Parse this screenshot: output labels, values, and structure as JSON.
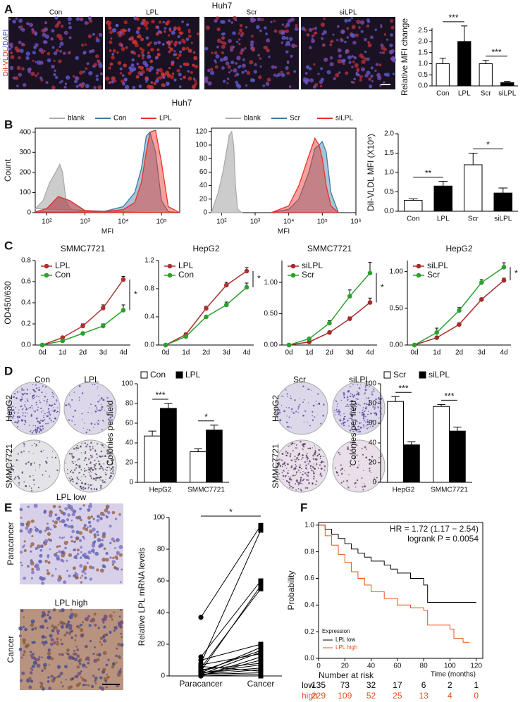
{
  "panel_labels": [
    "A",
    "B",
    "C",
    "D",
    "E",
    "F"
  ],
  "images": {
    "A": {
      "title": "Huh7",
      "side_label": [
        "DiI-VLDL",
        "/DAPI"
      ],
      "labels": [
        "Con",
        "LPL",
        "Scr",
        "siLPL"
      ]
    },
    "D": {
      "left": {
        "labels": [
          "Con",
          "LPL"
        ],
        "rows": [
          "HepG2",
          "SMMC7721"
        ]
      },
      "right": {
        "labels": [
          "Scr",
          "siLPL"
        ],
        "rows": [
          "HepG2",
          "SMMC7721"
        ]
      }
    },
    "E": {
      "labels": [
        "LPL low",
        "LPL high"
      ],
      "rows": [
        "Paracancer",
        "Cancer"
      ]
    }
  },
  "B_title": "Huh7",
  "chart_data": [
    {
      "type": "bar",
      "ylabel": "Relative MFI change",
      "categories": [
        "Con",
        "LPL",
        "Scr",
        "siLPL"
      ],
      "values": [
        1.0,
        2.0,
        1.0,
        0.15
      ],
      "errors": [
        0.25,
        0.7,
        0.15,
        0.05
      ],
      "colors": [
        "#ffffff",
        "#000000",
        "#ffffff",
        "#000000"
      ],
      "ylim": [
        0,
        2.6
      ],
      "yticks": [
        {
          "value": 0,
          "label": "0.0"
        },
        {
          "value": 0.5,
          "label": "0.5"
        },
        {
          "value": 1,
          "label": "1.0"
        },
        {
          "value": 1.5,
          "label": "1.5"
        },
        {
          "value": 2,
          "label": "2.0"
        },
        {
          "value": 2.5,
          "label": "2.5"
        }
      ],
      "annotations": [
        "***",
        "***"
      ]
    },
    {
      "type": "density",
      "ylabel": "Count",
      "xlabel": "MFI",
      "xscale": "log",
      "xlim": [
        50,
        300000
      ],
      "xticks": [
        {
          "value": 100,
          "label": "10²"
        },
        {
          "value": 1000,
          "label": "10³"
        },
        {
          "value": 10000,
          "label": "10⁴"
        },
        {
          "value": 100000,
          "label": "10⁵"
        }
      ],
      "ylim": [
        0,
        420
      ],
      "yticks": [
        0,
        100,
        200,
        300,
        400
      ],
      "series": [
        {
          "name": "blank",
          "color": "#aaaaaa",
          "x": [
            50,
            80,
            120,
            170,
            220,
            260,
            320,
            400,
            600,
            1000,
            3000,
            10000,
            50000
          ],
          "values": [
            20,
            60,
            150,
            200,
            240,
            200,
            60,
            20,
            10,
            5,
            3,
            2,
            0
          ]
        },
        {
          "name": "Con",
          "color": "#3b7ea1",
          "x": [
            50,
            100,
            200,
            400,
            1000,
            3000,
            10000,
            20000,
            30000,
            40000,
            50000,
            70000,
            100000,
            150000,
            300000
          ],
          "values": [
            3,
            20,
            80,
            60,
            10,
            5,
            30,
            100,
            220,
            380,
            400,
            300,
            60,
            5,
            0
          ]
        },
        {
          "name": "LPL",
          "color": "#e8312a",
          "x": [
            50,
            100,
            200,
            400,
            1000,
            3000,
            10000,
            20000,
            30000,
            40000,
            50000,
            70000,
            100000,
            150000,
            300000
          ],
          "values": [
            3,
            20,
            80,
            60,
            10,
            5,
            15,
            50,
            150,
            300,
            400,
            410,
            250,
            30,
            0
          ]
        }
      ]
    },
    {
      "type": "density",
      "xlabel": "MFI",
      "xscale": "log",
      "xlim": [
        50,
        1000000
      ],
      "xticks": [
        {
          "value": 100,
          "label": "10²"
        },
        {
          "value": 1000,
          "label": "10³"
        },
        {
          "value": 10000,
          "label": "10⁴"
        },
        {
          "value": 100000,
          "label": "10⁵"
        },
        {
          "value": 1000000,
          "label": "10⁶"
        }
      ],
      "ylim": [
        0,
        125
      ],
      "yticks": [
        0,
        20,
        40,
        60,
        80,
        100,
        120
      ],
      "series": [
        {
          "name": "blank",
          "color": "#aaaaaa",
          "x": [
            50,
            80,
            110,
            140,
            170,
            200,
            230,
            260,
            300,
            400
          ],
          "values": [
            0,
            30,
            60,
            90,
            115,
            120,
            100,
            40,
            5,
            0
          ]
        },
        {
          "name": "Scr",
          "color": "#3b7ea1",
          "x": [
            3000,
            10000,
            20000,
            40000,
            60000,
            80000,
            100000,
            130000,
            180000,
            300000
          ],
          "values": [
            0,
            5,
            20,
            60,
            95,
            100,
            105,
            90,
            30,
            0
          ]
        },
        {
          "name": "siLPL",
          "color": "#e8312a",
          "x": [
            3000,
            10000,
            20000,
            40000,
            60000,
            80000,
            100000,
            130000,
            180000,
            300000
          ],
          "values": [
            0,
            10,
            40,
            85,
            110,
            100,
            80,
            40,
            10,
            0
          ]
        }
      ]
    },
    {
      "type": "bar",
      "ylabel": "DiI-VLDL MFI (X10⁶)",
      "categories": [
        "Con",
        "LPL",
        "Scr",
        "siLPL"
      ],
      "values": [
        0.28,
        0.65,
        1.2,
        0.47
      ],
      "errors": [
        0.04,
        0.12,
        0.3,
        0.13
      ],
      "colors": [
        "#ffffff",
        "#000000",
        "#ffffff",
        "#000000"
      ],
      "ylim": [
        0,
        2
      ],
      "yticks": [
        {
          "value": 0,
          "label": "0.0"
        },
        {
          "value": 0.5,
          "label": "0.5"
        },
        {
          "value": 1,
          "label": "1.0"
        },
        {
          "value": 1.5,
          "label": "1.5"
        },
        {
          "value": 2,
          "label": "2.0"
        }
      ],
      "annotations": [
        "**",
        "*"
      ]
    },
    {
      "type": "line",
      "title": "SMMC7721",
      "ylabel": "OD450/630",
      "categories": [
        "0d",
        "1d",
        "2d",
        "3d",
        "4d"
      ],
      "ylim": [
        0,
        0.8
      ],
      "yticks": [
        {
          "value": 0,
          "label": "0.0"
        },
        {
          "value": 0.2,
          "label": "0.2"
        },
        {
          "value": 0.4,
          "label": "0.4"
        },
        {
          "value": 0.6,
          "label": "0.6"
        },
        {
          "value": 0.8,
          "label": "0.8"
        }
      ],
      "series": [
        {
          "name": "LPL",
          "color": "#b03030",
          "values": [
            0,
            0.07,
            0.18,
            0.35,
            0.62
          ],
          "errors": [
            0,
            0.01,
            0.02,
            0.03,
            0.03
          ]
        },
        {
          "name": "Con",
          "color": "#2ca02c",
          "values": [
            0,
            0.04,
            0.11,
            0.18,
            0.33
          ],
          "errors": [
            0,
            0.01,
            0.01,
            0.02,
            0.05
          ]
        }
      ],
      "annotations": [
        "*"
      ]
    },
    {
      "type": "line",
      "title": "HepG2",
      "categories": [
        "0d",
        "1d",
        "2d",
        "3d",
        "4d"
      ],
      "ylim": [
        0,
        1.2
      ],
      "yticks": [
        {
          "value": 0,
          "label": "0.0"
        },
        {
          "value": 0.4,
          "label": "0.4"
        },
        {
          "value": 0.8,
          "label": "0.8"
        },
        {
          "value": 1.2,
          "label": "1.2"
        }
      ],
      "series": [
        {
          "name": "LPL",
          "color": "#b03030",
          "values": [
            0,
            0.15,
            0.52,
            0.85,
            1.05
          ],
          "errors": [
            0,
            0.02,
            0.03,
            0.04,
            0.05
          ]
        },
        {
          "name": "Con",
          "color": "#2ca02c",
          "values": [
            0,
            0.12,
            0.4,
            0.57,
            0.82
          ],
          "errors": [
            0,
            0.02,
            0.02,
            0.04,
            0.06
          ]
        }
      ],
      "annotations": [
        "*"
      ]
    },
    {
      "type": "line",
      "title": "SMMC7721",
      "categories": [
        "0d",
        "1d",
        "2d",
        "3d",
        "4d"
      ],
      "ylim": [
        0,
        1.35
      ],
      "yticks": [
        {
          "value": 0,
          "label": "0.00"
        },
        {
          "value": 0.5,
          "label": "0.50"
        },
        {
          "value": 1,
          "label": "1.00"
        }
      ],
      "series": [
        {
          "name": "siLPL",
          "color": "#a52a2a",
          "values": [
            0,
            0.05,
            0.2,
            0.42,
            0.68
          ],
          "errors": [
            0,
            0.01,
            0.02,
            0.03,
            0.07
          ]
        },
        {
          "name": "Scr",
          "color": "#2ca02c",
          "values": [
            0,
            0.1,
            0.35,
            0.78,
            1.15
          ],
          "errors": [
            0,
            0.02,
            0.04,
            0.1,
            0.17
          ]
        }
      ],
      "annotations": [
        "*"
      ]
    },
    {
      "type": "line",
      "title": "HepG2",
      "categories": [
        "0d",
        "1d",
        "2d",
        "3d",
        "4d"
      ],
      "ylim": [
        0,
        1.15
      ],
      "yticks": [
        {
          "value": 0,
          "label": "0.00"
        },
        {
          "value": 0.5,
          "label": "0.50"
        },
        {
          "value": 1,
          "label": "1.00"
        }
      ],
      "series": [
        {
          "name": "siLPL",
          "color": "#a52a2a",
          "values": [
            0,
            0.1,
            0.28,
            0.62,
            0.88
          ],
          "errors": [
            0,
            0.02,
            0.02,
            0.02,
            0.03
          ]
        },
        {
          "name": "Scr",
          "color": "#2ca02c",
          "values": [
            0,
            0.17,
            0.47,
            0.85,
            1.06
          ],
          "errors": [
            0,
            0.06,
            0.04,
            0.04,
            0.06
          ]
        }
      ],
      "annotations": [
        "*"
      ]
    },
    {
      "type": "bar",
      "ylabel": "Colonies per field",
      "categories": [
        "HepG2",
        "SMMC7721"
      ],
      "ylim": [
        0,
        100
      ],
      "yticks": [
        0,
        20,
        40,
        60,
        80,
        100
      ],
      "series": [
        {
          "name": "Con",
          "color": "#ffffff",
          "values": [
            47,
            31
          ],
          "errors": [
            5,
            3
          ]
        },
        {
          "name": "LPL",
          "color": "#000000",
          "values": [
            75,
            53
          ],
          "errors": [
            5,
            5
          ]
        }
      ],
      "annotations": [
        "***",
        "*"
      ]
    },
    {
      "type": "bar",
      "ylabel": "Colonies per field",
      "categories": [
        "HepG2",
        "SMMC7721"
      ],
      "ylim": [
        0,
        100
      ],
      "yticks": [
        0,
        20,
        40,
        60,
        80,
        100
      ],
      "series": [
        {
          "name": "Scr",
          "color": "#ffffff",
          "values": [
            82,
            77
          ],
          "errors": [
            5,
            2
          ]
        },
        {
          "name": "siLPL",
          "color": "#000000",
          "values": [
            38,
            52
          ],
          "errors": [
            3,
            4
          ]
        }
      ],
      "annotations": [
        "***",
        "***"
      ]
    },
    {
      "type": "paired",
      "ylabel": "Relative LPL mRNA levels",
      "categories": [
        "Paracancer",
        "Cancer"
      ],
      "ylim": [
        0,
        100
      ],
      "yticks": [
        0,
        20,
        40,
        60,
        80,
        100
      ],
      "pairs": [
        [
          37,
          95
        ],
        [
          8,
          92
        ],
        [
          12,
          60
        ],
        [
          3,
          57
        ],
        [
          5,
          55
        ],
        [
          2,
          18
        ],
        [
          1,
          15
        ],
        [
          0,
          12
        ],
        [
          0,
          10
        ],
        [
          4,
          8
        ],
        [
          2,
          5
        ],
        [
          6,
          3
        ],
        [
          1,
          2
        ],
        [
          0,
          0
        ],
        [
          3,
          16
        ],
        [
          10,
          20
        ],
        [
          7,
          14
        ],
        [
          2,
          7
        ],
        [
          0,
          1
        ],
        [
          1,
          4
        ]
      ],
      "annotations": [
        "*"
      ]
    },
    {
      "type": "km",
      "ylabel": "Probability",
      "xlabel": "Time (months)",
      "xlim": [
        0,
        125
      ],
      "xticks": [
        0,
        20,
        40,
        60,
        80,
        100,
        120
      ],
      "ylim": [
        0,
        1.02
      ],
      "yticks": [
        {
          "value": 0,
          "label": "0.0"
        },
        {
          "value": 0.2,
          "label": "0.2"
        },
        {
          "value": 0.4,
          "label": "0.4"
        },
        {
          "value": 0.6,
          "label": "0.6"
        },
        {
          "value": 0.8,
          "label": "0.8"
        },
        {
          "value": 1,
          "label": "1.0"
        }
      ],
      "legend_title": "Expression",
      "annotations": [
        "HR = 1.72 (1.17 − 2.54)",
        "logrank P = 0.0054"
      ],
      "series": [
        {
          "name": "LPL low",
          "color": "#000000",
          "x": [
            0,
            5,
            5,
            10,
            10,
            15,
            15,
            20,
            20,
            25,
            25,
            30,
            30,
            35,
            35,
            40,
            40,
            50,
            50,
            55,
            55,
            60,
            60,
            70,
            70,
            80,
            80,
            83,
            83,
            120
          ],
          "values": [
            1,
            1,
            0.97,
            0.97,
            0.93,
            0.93,
            0.9,
            0.9,
            0.86,
            0.86,
            0.82,
            0.82,
            0.79,
            0.79,
            0.76,
            0.76,
            0.73,
            0.73,
            0.7,
            0.7,
            0.67,
            0.67,
            0.64,
            0.64,
            0.6,
            0.6,
            0.55,
            0.55,
            0.42,
            0.42
          ]
        },
        {
          "name": "LPL high",
          "color": "#e8501e",
          "x": [
            0,
            5,
            5,
            10,
            10,
            15,
            15,
            20,
            20,
            25,
            25,
            30,
            30,
            35,
            35,
            40,
            40,
            50,
            50,
            60,
            60,
            70,
            70,
            80,
            80,
            83,
            83,
            100,
            100,
            103,
            103,
            110,
            110,
            115
          ],
          "values": [
            1,
            1,
            0.92,
            0.92,
            0.85,
            0.85,
            0.78,
            0.78,
            0.72,
            0.72,
            0.65,
            0.65,
            0.6,
            0.6,
            0.55,
            0.55,
            0.5,
            0.5,
            0.45,
            0.45,
            0.4,
            0.4,
            0.38,
            0.38,
            0.36,
            0.36,
            0.25,
            0.25,
            0.22,
            0.22,
            0.15,
            0.15,
            0.12,
            0.12
          ]
        }
      ],
      "risk_table": {
        "title": "Number at risk",
        "rows": [
          {
            "name": "low",
            "values": [
              135,
              73,
              32,
              17,
              6,
              2,
              1
            ]
          },
          {
            "name": "high",
            "values": [
              229,
              109,
              52,
              25,
              13,
              4,
              0
            ]
          }
        ]
      }
    }
  ]
}
